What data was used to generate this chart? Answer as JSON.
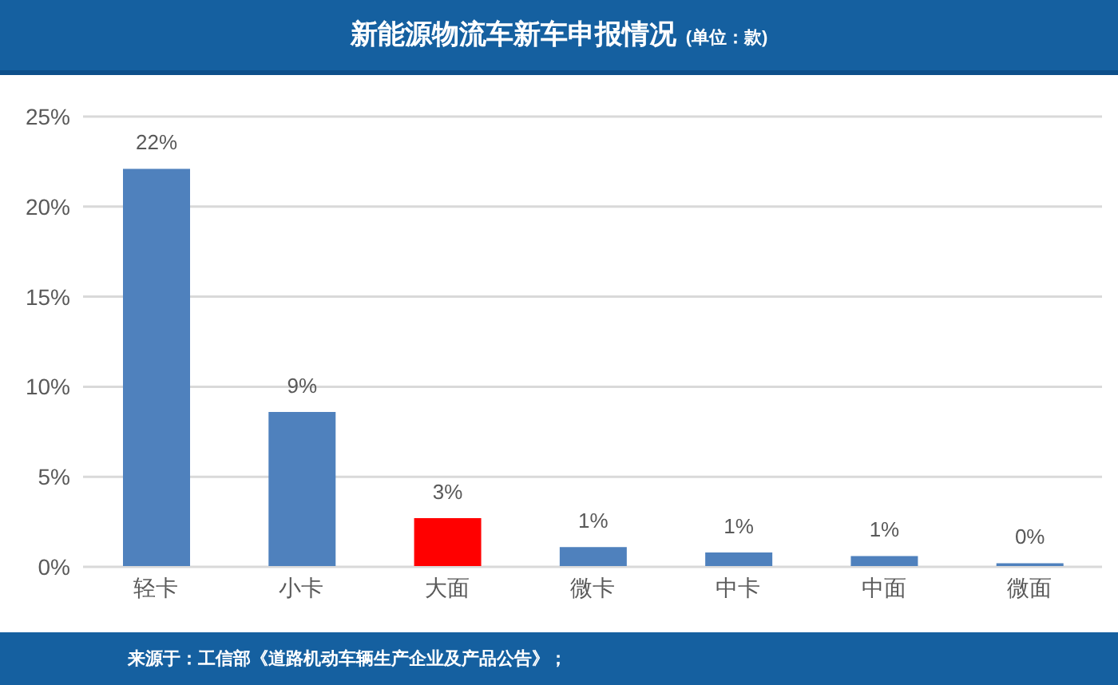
{
  "chart_data": {
    "type": "bar",
    "title": "新能源物流车新车申报情况",
    "subtitle": "(单位：款)",
    "categories": [
      "轻卡",
      "小卡",
      "大面",
      "微卡",
      "中卡",
      "中面",
      "微面"
    ],
    "values": [
      22.1,
      8.6,
      2.7,
      1.1,
      0.8,
      0.6,
      0.2
    ],
    "colors": [
      "#4f81bd",
      "#4f81bd",
      "#ff0000",
      "#4f81bd",
      "#4f81bd",
      "#4f81bd",
      "#4f81bd"
    ],
    "value_labels": [
      "22%",
      "9%",
      "3%",
      "1%",
      "1%",
      "1%",
      "0%"
    ],
    "ylim": [
      0,
      25
    ],
    "yticks": [
      {
        "value": 0,
        "label": "0%"
      },
      {
        "value": 5,
        "label": "5%"
      },
      {
        "value": 10,
        "label": "10%"
      },
      {
        "value": 15,
        "label": "15%"
      },
      {
        "value": 20,
        "label": "20%"
      },
      {
        "value": 25,
        "label": "25%"
      }
    ],
    "grid": "y",
    "annotations": [
      "来源于：工信部《道路机动车辆生产企业及产品公告》；"
    ]
  }
}
